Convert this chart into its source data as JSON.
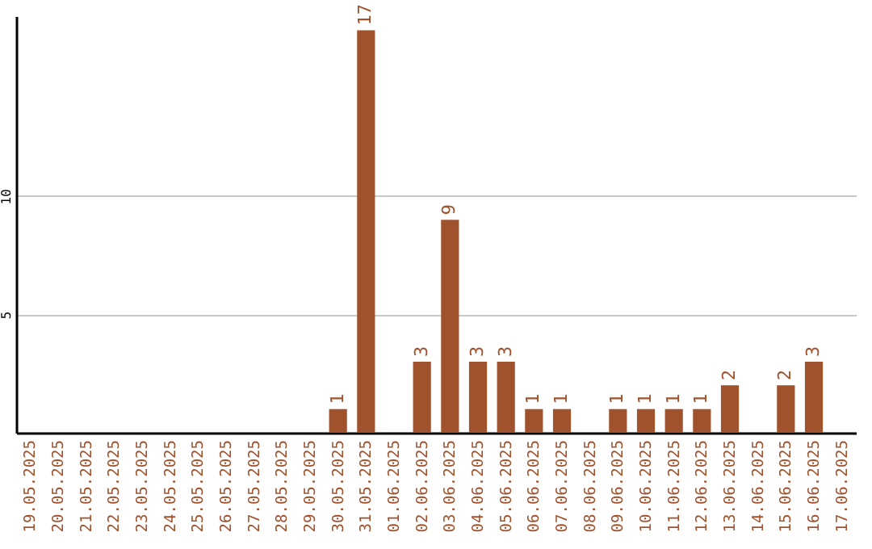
{
  "chart_data": {
    "type": "bar",
    "categories": [
      "19.05.2025",
      "20.05.2025",
      "21.05.2025",
      "22.05.2025",
      "23.05.2025",
      "24.05.2025",
      "25.05.2025",
      "26.05.2025",
      "27.05.2025",
      "28.05.2025",
      "29.05.2025",
      "30.05.2025",
      "31.05.2025",
      "01.06.2025",
      "02.06.2025",
      "03.06.2025",
      "04.06.2025",
      "05.06.2025",
      "06.06.2025",
      "07.06.2025",
      "08.06.2025",
      "09.06.2025",
      "10.06.2025",
      "11.06.2025",
      "12.06.2025",
      "13.06.2025",
      "14.06.2025",
      "15.06.2025",
      "16.06.2025",
      "17.06.2025"
    ],
    "values": [
      null,
      null,
      null,
      null,
      null,
      null,
      null,
      null,
      null,
      null,
      null,
      1,
      17,
      null,
      3,
      9,
      3,
      3,
      1,
      1,
      null,
      1,
      1,
      1,
      1,
      2,
      null,
      2,
      3,
      null
    ],
    "color": "#a0522d",
    "ylim": [
      0,
      17.6
    ],
    "yticks": [
      5,
      10
    ],
    "grid": "y",
    "data_labels": true
  }
}
